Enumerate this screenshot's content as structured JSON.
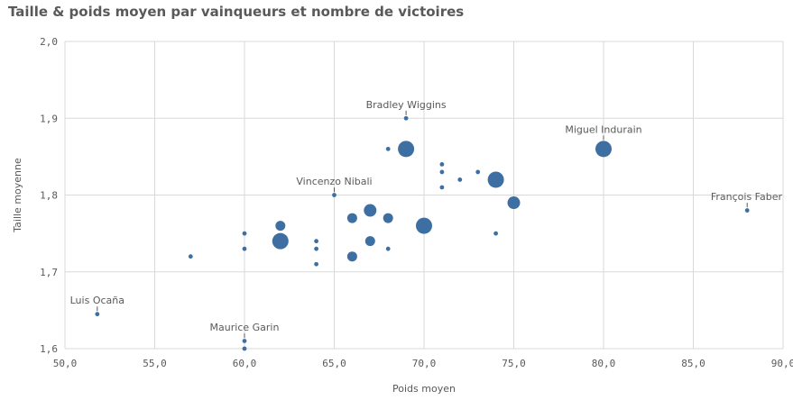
{
  "title": "Taille & poids moyen par vainqueurs et nombre de victoires",
  "chart_data": {
    "type": "scatter",
    "title": "Taille & poids moyen par vainqueurs et nombre de victoires",
    "xlabel": "Poids moyen",
    "ylabel": "Taille moyenne",
    "xlim": [
      50,
      90
    ],
    "ylim": [
      1.6,
      2.0
    ],
    "xticks": [
      50,
      55,
      60,
      65,
      70,
      75,
      80,
      85,
      90
    ],
    "xtick_labels": [
      "50,0",
      "55,0",
      "60,0",
      "65,0",
      "70,0",
      "75,0",
      "80,0",
      "85,0",
      "90,0"
    ],
    "yticks": [
      1.6,
      1.7,
      1.8,
      1.9,
      2.0
    ],
    "ytick_labels": [
      "1,6",
      "1,7",
      "1,8",
      "1,9",
      "2,0"
    ],
    "grid": true,
    "marker_color": "#3e6fa3",
    "size_encodes": "nombre de victoires",
    "points": [
      {
        "x": 51.8,
        "y": 1.645,
        "size": 1,
        "label": "Luis Ocaña"
      },
      {
        "x": 57,
        "y": 1.72,
        "size": 1
      },
      {
        "x": 60,
        "y": 1.75,
        "size": 1
      },
      {
        "x": 60,
        "y": 1.73,
        "size": 1
      },
      {
        "x": 60,
        "y": 1.61,
        "size": 1,
        "label": "Maurice Garin"
      },
      {
        "x": 60,
        "y": 1.6,
        "size": 1
      },
      {
        "x": 62,
        "y": 1.76,
        "size": 3
      },
      {
        "x": 62,
        "y": 1.74,
        "size": 5
      },
      {
        "x": 64,
        "y": 1.74,
        "size": 1
      },
      {
        "x": 64,
        "y": 1.73,
        "size": 1
      },
      {
        "x": 64,
        "y": 1.71,
        "size": 1
      },
      {
        "x": 65,
        "y": 1.8,
        "size": 1,
        "label": "Vincenzo Nibali"
      },
      {
        "x": 66,
        "y": 1.77,
        "size": 3
      },
      {
        "x": 66,
        "y": 1.72,
        "size": 3
      },
      {
        "x": 67,
        "y": 1.78,
        "size": 4
      },
      {
        "x": 67,
        "y": 1.74,
        "size": 3
      },
      {
        "x": 68,
        "y": 1.86,
        "size": 1
      },
      {
        "x": 68,
        "y": 1.77,
        "size": 3
      },
      {
        "x": 68,
        "y": 1.73,
        "size": 1
      },
      {
        "x": 69,
        "y": 1.9,
        "size": 1,
        "label": "Bradley Wiggins"
      },
      {
        "x": 69,
        "y": 1.86,
        "size": 5
      },
      {
        "x": 70,
        "y": 1.76,
        "size": 5
      },
      {
        "x": 71,
        "y": 1.84,
        "size": 1
      },
      {
        "x": 71,
        "y": 1.83,
        "size": 1
      },
      {
        "x": 71,
        "y": 1.81,
        "size": 1
      },
      {
        "x": 72,
        "y": 1.82,
        "size": 1
      },
      {
        "x": 73,
        "y": 1.83,
        "size": 1
      },
      {
        "x": 74,
        "y": 1.82,
        "size": 5
      },
      {
        "x": 74,
        "y": 1.75,
        "size": 1
      },
      {
        "x": 75,
        "y": 1.79,
        "size": 4
      },
      {
        "x": 80,
        "y": 1.86,
        "size": 5,
        "label": "Miguel Indurain"
      },
      {
        "x": 88,
        "y": 1.78,
        "size": 1,
        "label": "François Faber"
      }
    ]
  }
}
